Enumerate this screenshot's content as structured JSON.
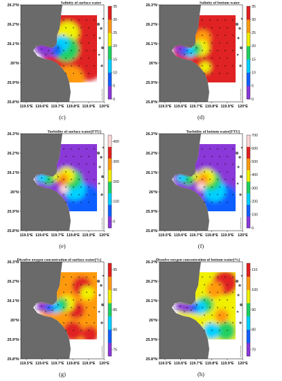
{
  "panels": [
    {
      "id": "c",
      "label": "(c)",
      "title": "Salinity of surface water",
      "cbar_ticks": [
        "0",
        "5",
        "10",
        "15",
        "20",
        "25",
        "30",
        "35"
      ],
      "cbar_colors": [
        "#8a38d8",
        "#1060ff",
        "#00d0ff",
        "#20d060",
        "#f0f000",
        "#ff9a10",
        "#e02020"
      ],
      "pattern": "sal-surface"
    },
    {
      "id": "d",
      "label": "(d)",
      "title": "Salinity of bottom water",
      "cbar_ticks": [
        "0",
        "5",
        "10",
        "15",
        "20",
        "25",
        "30",
        "35"
      ],
      "cbar_colors": [
        "#8a38d8",
        "#1060ff",
        "#00d0ff",
        "#20d060",
        "#f0f000",
        "#ff9a10",
        "#e02020"
      ],
      "pattern": "sal-bottom"
    },
    {
      "id": "e",
      "label": "(e)",
      "title": "Turbidity of surface water[FTU]",
      "cbar_ticks": [
        "0",
        "100",
        "200",
        "300",
        "400"
      ],
      "cbar_colors": [
        "#8a38d8",
        "#1060ff",
        "#00d0ff",
        "#20d060",
        "#f0f000",
        "#ff9a10",
        "#e02020",
        "#ffd8d8"
      ],
      "pattern": "turb-surface"
    },
    {
      "id": "f",
      "label": "(f)",
      "title": "Turbidity of bottom water[FTU]",
      "cbar_ticks": [
        "0",
        "100",
        "200",
        "300",
        "400",
        "500",
        "600",
        "700"
      ],
      "cbar_colors": [
        "#8a38d8",
        "#1060ff",
        "#00d0ff",
        "#20d060",
        "#f0f000",
        "#ff9a10",
        "#e02020",
        "#ffd8d8"
      ],
      "pattern": "turb-bottom"
    },
    {
      "id": "g",
      "label": "(g)",
      "title": "Dissolve oxygen concentration of surface water[%]",
      "cbar_ticks": [
        "75",
        "80",
        "85",
        "90",
        "95"
      ],
      "cbar_colors": [
        "#8a38d8",
        "#1060ff",
        "#00d0ff",
        "#20d060",
        "#f0f000",
        "#ff9a10",
        "#e02020"
      ],
      "pattern": "do-surface"
    },
    {
      "id": "h",
      "label": "(h)",
      "title": "Dissolve oxygen concentration of bottom water[%]",
      "cbar_ticks": [
        "70",
        "80",
        "90",
        "100",
        "110"
      ],
      "cbar_colors": [
        "#8a38d8",
        "#1060ff",
        "#00d0ff",
        "#20d060",
        "#f0f000",
        "#ff9a10",
        "#e02020"
      ],
      "pattern": "do-bottom"
    }
  ],
  "lat_ticks": [
    "26.3°N",
    "26.2°N",
    "26.1°N",
    "26°N",
    "25.9°N",
    "25.8°N"
  ],
  "lon_ticks": [
    "119.5°E",
    "119.6°E",
    "119.7°E",
    "119.8°E",
    "119.9°E",
    "120°E"
  ],
  "credit": "Ocean Data View"
}
